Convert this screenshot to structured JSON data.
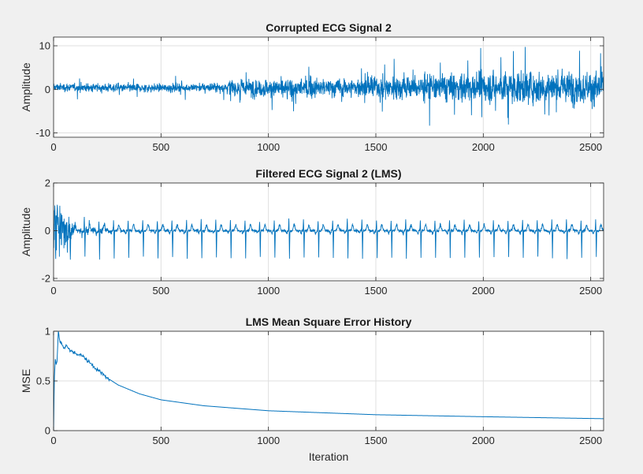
{
  "figure": {
    "background": "#f0f0f0",
    "axes_background": "#ffffff",
    "line_color": "#0072bd",
    "grid_color": "#dfdfdf",
    "axis_color": "#262626"
  },
  "chart_data": [
    {
      "type": "line",
      "title": "Corrupted ECG Signal 2",
      "xlabel": "",
      "ylabel": "Amplitude",
      "xlim": [
        0,
        2560
      ],
      "ylim": [
        -11,
        12
      ],
      "xticks": [
        0,
        500,
        1000,
        1500,
        2000,
        2500
      ],
      "yticks": [
        -10,
        0,
        10
      ],
      "grid": true,
      "legend": "none",
      "series": [
        {
          "samples": 2560,
          "description_points": [
            [
              0,
              0.5
            ],
            [
              400,
              0.3
            ],
            [
              800,
              0.5
            ],
            [
              1000,
              0.2
            ],
            [
              1500,
              0.5
            ],
            [
              2000,
              0.5
            ],
            [
              2560,
              0.5
            ]
          ],
          "noise_envelope": [
            [
              0,
              1.6
            ],
            [
              800,
              1.8
            ],
            [
              830,
              3.5
            ],
            [
              1000,
              3.6
            ],
            [
              1400,
              3.8
            ],
            [
              1700,
              5.5
            ],
            [
              2000,
              6.2
            ],
            [
              2560,
              6.8
            ]
          ]
        }
      ]
    },
    {
      "type": "line",
      "title": "Filtered ECG Signal 2 (LMS)",
      "xlabel": "",
      "ylabel": "Amplitude",
      "xlim": [
        0,
        2560
      ],
      "ylim": [
        -2.1,
        2
      ],
      "xticks": [
        0,
        500,
        1000,
        1500,
        2000,
        2500
      ],
      "yticks": [
        -2,
        0,
        2
      ],
      "grid": true,
      "legend": "none",
      "series": [
        {
          "samples": 2560,
          "beat_interval": 68,
          "first_beat": 10,
          "spike_min": -1.15,
          "spike_max": 0.45,
          "initial_transient_end": 120,
          "initial_transient_amplitude": 1.9
        }
      ]
    },
    {
      "type": "line",
      "title": "LMS Mean Square Error History",
      "xlabel": "Iteration",
      "ylabel": "MSE",
      "xlim": [
        0,
        2560
      ],
      "ylim": [
        0,
        1
      ],
      "xticks": [
        0,
        500,
        1000,
        1500,
        2000,
        2500
      ],
      "yticks": [
        0,
        0.5,
        1
      ],
      "grid": true,
      "legend": "none",
      "series": [
        {
          "x": [
            0,
            3,
            8,
            15,
            22,
            30,
            40,
            50,
            60,
            70,
            80,
            100,
            130,
            160,
            200,
            250,
            300,
            400,
            500,
            700,
            1000,
            1500,
            2000,
            2560
          ],
          "y": [
            0.0,
            0.5,
            0.72,
            0.65,
            1.0,
            0.9,
            0.86,
            0.82,
            0.86,
            0.83,
            0.8,
            0.78,
            0.76,
            0.7,
            0.62,
            0.53,
            0.46,
            0.37,
            0.31,
            0.25,
            0.2,
            0.16,
            0.14,
            0.12
          ]
        }
      ]
    }
  ]
}
